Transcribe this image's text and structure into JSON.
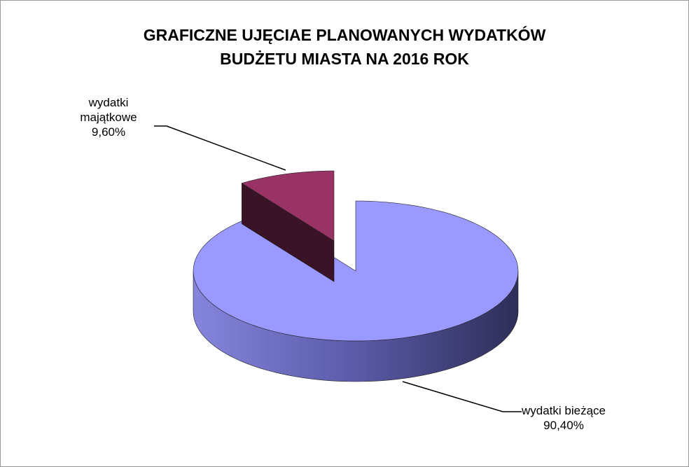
{
  "chart_data": {
    "type": "pie",
    "title": [
      "GRAFICZNE UJĘCIAE PLANOWANYCH WYDATKÓW",
      "BUDŻETU MIASTA NA 2016 ROK"
    ],
    "categories": [
      "wydatki bieżące",
      "wydatki majątkowe"
    ],
    "values": [
      90.4,
      9.6
    ],
    "value_labels": [
      "90,40%",
      "9,60%"
    ],
    "colors": [
      "#9999ff",
      "#993366"
    ],
    "exploded": [
      false,
      true
    ]
  }
}
